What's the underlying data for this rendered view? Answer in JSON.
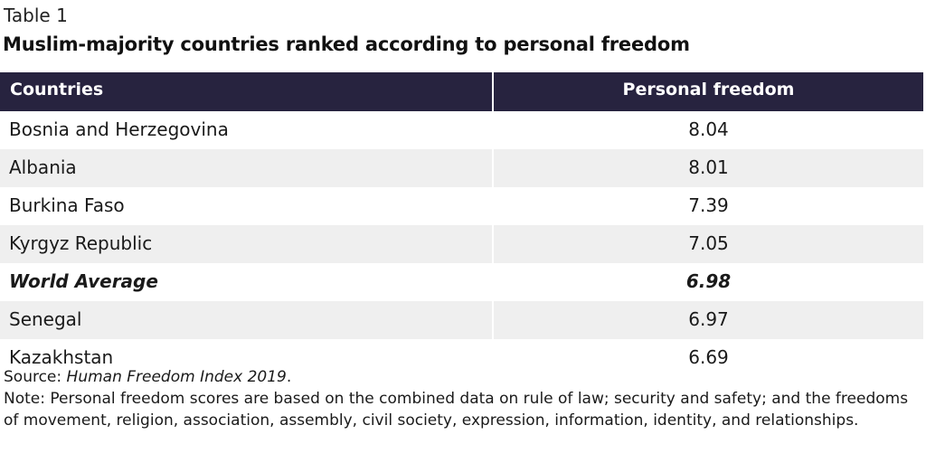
{
  "table_label": "Table 1",
  "title": "Muslim-majority countries ranked according to personal freedom",
  "columns": [
    "Countries",
    "Personal freedom"
  ],
  "rows": [
    {
      "country": "Bosnia and Herzegovina",
      "score": "8.04"
    },
    {
      "country": "Albania",
      "score": "8.01"
    },
    {
      "country": "Burkina Faso",
      "score": "7.39"
    },
    {
      "country": "Kyrgyz Republic",
      "score": "7.05"
    },
    {
      "country": "World Average",
      "score": "6.98"
    },
    {
      "country": "Senegal",
      "score": "6.97"
    },
    {
      "country": "Kazakhstan",
      "score": "6.69"
    }
  ],
  "source": {
    "prefix": "Source: ",
    "name": "Human Freedom Index 2019",
    "suffix": "."
  },
  "note": "Note: Personal freedom scores are based on the combined data on rule of law; security and safety; and the freedoms of movement, religion, association, assembly, civil society, expression, information, identity, and relationships.",
  "colors": {
    "header_bg": "#27233f",
    "header_text": "#ffffff",
    "row_alt_bg": "#efefef"
  }
}
